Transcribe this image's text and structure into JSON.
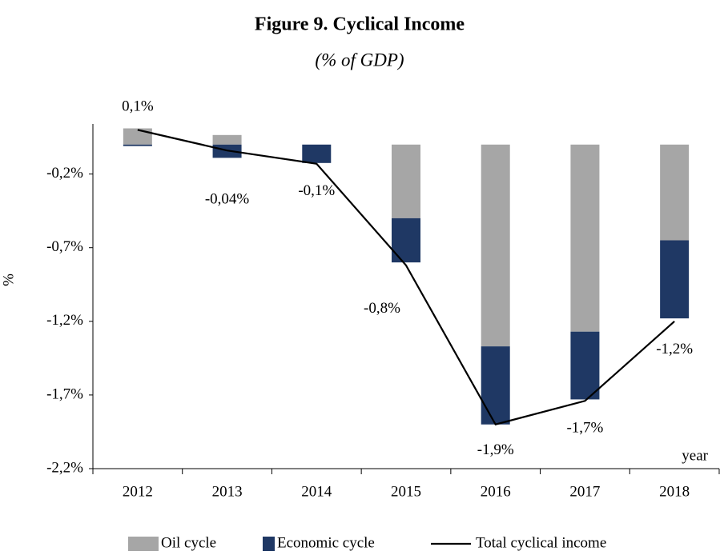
{
  "chart_data": {
    "type": "bar",
    "title": "Figure 9. Cyclical Income",
    "subtitle": "(% of GDP)",
    "y_label": "%",
    "x_label": "year",
    "categories": [
      "2012",
      "2013",
      "2014",
      "2015",
      "2016",
      "2017",
      "2018"
    ],
    "series": [
      {
        "name": "Oil cycle",
        "type": "bar",
        "color": "#a6a6a6",
        "values": [
          0.11,
          0.065,
          0,
          -0.5,
          -1.37,
          -1.27,
          -0.65
        ]
      },
      {
        "name": "Economic cycle",
        "type": "bar",
        "color": "#1f3864",
        "values": [
          -0.01,
          -0.09,
          -0.125,
          -0.3,
          -0.53,
          -0.46,
          -0.53
        ]
      },
      {
        "name": "Total cyclical income",
        "type": "line",
        "color": "#000000",
        "values": [
          0.1,
          -0.04,
          -0.13,
          -0.82,
          -1.9,
          -1.74,
          -1.2
        ],
        "value_labels": [
          "0,1%",
          "-0,04%",
          "-0,1%",
          "-0,8%",
          "-1,9%",
          "-1,7%",
          "-1,2%"
        ]
      }
    ],
    "ylim": [
      -2.2,
      0.14
    ],
    "yticks": [
      {
        "value": -0.2,
        "label": "-0,2%"
      },
      {
        "value": -0.7,
        "label": "-0,7%"
      },
      {
        "value": -1.2,
        "label": "-1,2%"
      },
      {
        "value": -1.7,
        "label": "-1,7%"
      },
      {
        "value": -2.2,
        "label": "-2,2%"
      }
    ],
    "legend": "bottom",
    "grid": false
  }
}
